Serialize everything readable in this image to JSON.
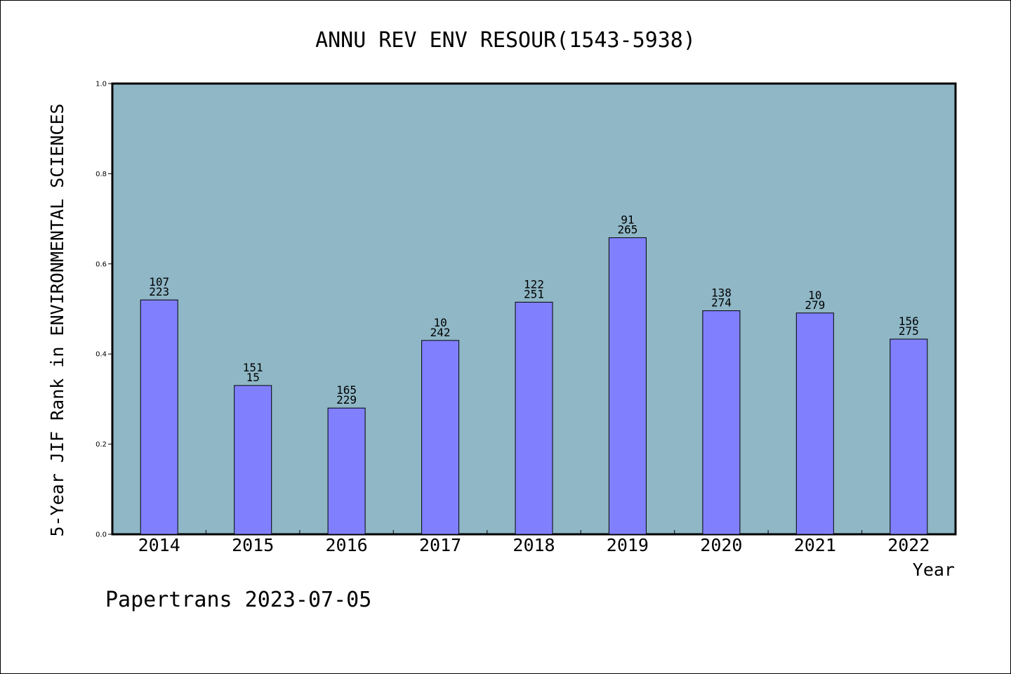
{
  "chart_data": {
    "type": "bar",
    "title": "ANNU REV ENV RESOUR(1543-5938)",
    "xlabel": "Year",
    "ylabel": "5-Year JIF Rank in ENVIRONMENTAL SCIENCES",
    "categories": [
      "2014",
      "2015",
      "2016",
      "2017",
      "2018",
      "2019",
      "2020",
      "2021",
      "2022"
    ],
    "values": [
      0.52,
      0.33,
      0.28,
      0.43,
      0.515,
      0.658,
      0.496,
      0.491,
      0.433
    ],
    "annotations_top": [
      "107",
      "151",
      "165",
      "10",
      "122",
      "91",
      "138",
      "10",
      "156"
    ],
    "annotations_bottom": [
      "223",
      "15",
      "229",
      "242",
      "251",
      "265",
      "274",
      "279",
      "275"
    ],
    "ylim": [
      0.0,
      1.0
    ],
    "yticks": [
      "0.0",
      "0.2",
      "0.4",
      "0.6",
      "0.8",
      "1.0"
    ],
    "grid": false,
    "legend": "none",
    "colors": {
      "plot_background": "#8fb7c6",
      "bar_fill": "#8080ff",
      "bar_stroke": "#000000",
      "axis": "#000000"
    }
  },
  "footer": {
    "watermark": "Papertrans 2023-07-05"
  }
}
